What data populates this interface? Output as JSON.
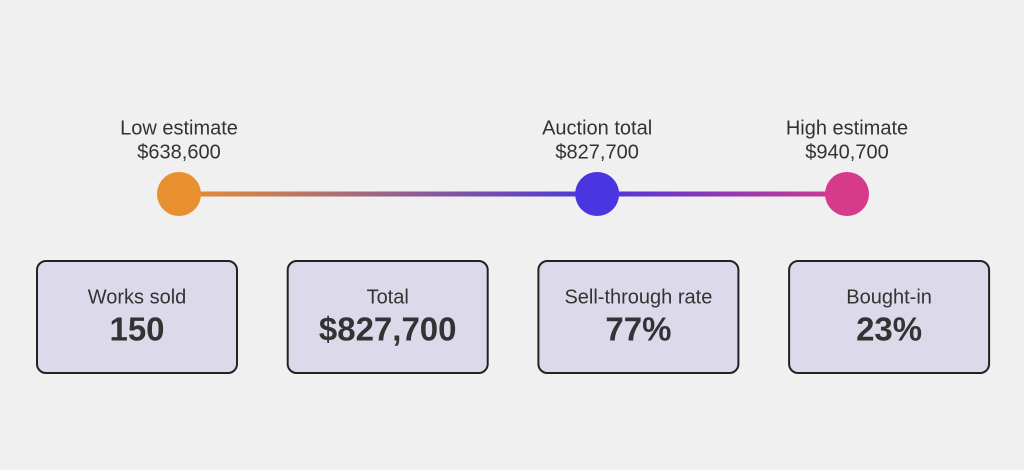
{
  "points": [
    {
      "label": "Low estimate",
      "amount": {
        "value": 638600,
        "label": "$638,600"
      },
      "color": "#e8902f"
    },
    {
      "label": "Auction total",
      "amount": {
        "value": 827700,
        "label": "$827,700"
      },
      "color": "#4a35e0"
    },
    {
      "label": "High estimate",
      "amount": {
        "value": 940700,
        "label": "$940,700"
      },
      "color": "#d63a8a"
    }
  ],
  "stats": [
    {
      "label": "Works sold",
      "value": "150"
    },
    {
      "label": "Total",
      "value": "$827,700"
    },
    {
      "label": "Sell-through rate",
      "value": "77%"
    },
    {
      "label": "Bought-in",
      "value": "23%"
    }
  ]
}
